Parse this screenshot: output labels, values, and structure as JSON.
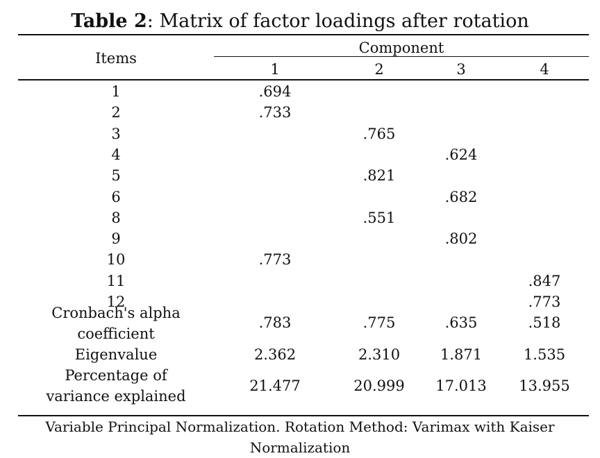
{
  "table": {
    "title_bold": "Table 2",
    "title_rest": ": Matrix of factor loadings after rotation",
    "items_header": "Items",
    "component_header": "Component",
    "component_numbers": [
      "1",
      "2",
      "3",
      "4"
    ],
    "rows": [
      {
        "item": "1",
        "values": [
          ".694",
          "",
          "",
          ""
        ]
      },
      {
        "item": "2",
        "values": [
          ".733",
          "",
          "",
          ""
        ]
      },
      {
        "item": "3",
        "values": [
          "",
          ".765",
          "",
          ""
        ]
      },
      {
        "item": "4",
        "values": [
          "",
          "",
          ".624",
          ""
        ]
      },
      {
        "item": "5",
        "values": [
          "",
          ".821",
          "",
          ""
        ]
      },
      {
        "item": "6",
        "values": [
          "",
          "",
          ".682",
          ""
        ]
      },
      {
        "item": "8",
        "values": [
          "",
          ".551",
          "",
          ""
        ]
      },
      {
        "item": "9",
        "values": [
          "",
          "",
          ".802",
          ""
        ]
      },
      {
        "item": "10",
        "values": [
          ".773",
          "",
          "",
          ""
        ]
      },
      {
        "item": "11",
        "values": [
          "",
          "",
          "",
          ".847"
        ]
      },
      {
        "item": "12",
        "values": [
          "",
          "",
          "",
          ".773"
        ]
      }
    ],
    "summary_rows": [
      {
        "label_lines": [
          "Cronbach's alpha",
          "coefficient"
        ],
        "values": [
          ".783",
          ".775",
          ".635",
          ".518"
        ]
      },
      {
        "label_lines": [
          "Eigenvalue"
        ],
        "values": [
          "2.362",
          "2.310",
          "1.871",
          "1.535"
        ]
      },
      {
        "label_lines": [
          "Percentage of",
          "variance explained"
        ],
        "values": [
          "21.477",
          "20.999",
          "17.013",
          "13.955"
        ]
      }
    ],
    "footnote_lines": [
      "Variable Principal Normalization. Rotation Method: Varimax with Kaiser",
      "Normalization"
    ]
  }
}
